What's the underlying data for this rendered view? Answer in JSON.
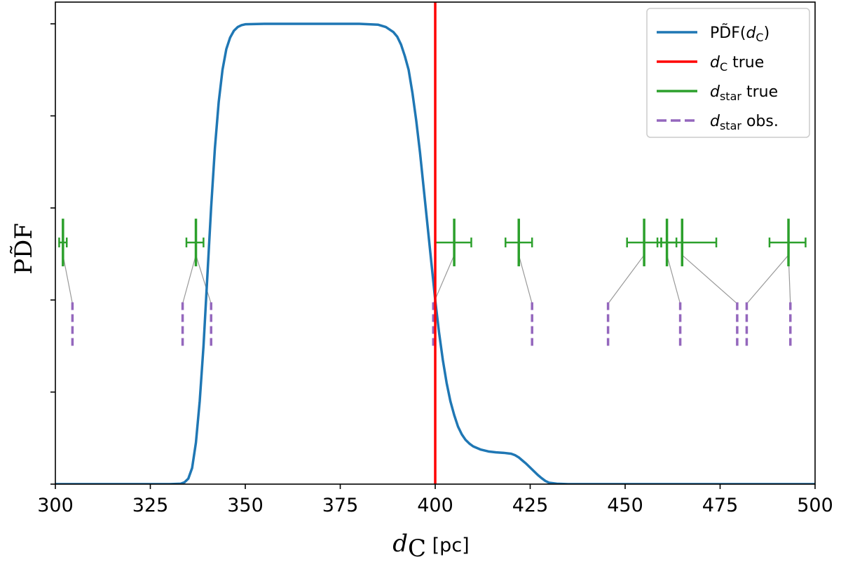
{
  "chart_data": {
    "type": "line",
    "xlabel": "d_C [pc]",
    "ylabel": "PDF~",
    "xlim": [
      300,
      500
    ],
    "ylim": [
      0,
      1.0
    ],
    "grid": false,
    "legend_position": "top-right",
    "x_ticks": [
      300,
      325,
      350,
      375,
      400,
      425,
      450,
      475,
      500
    ],
    "x_tick_labels": [
      "300",
      "325",
      "350",
      "375",
      "400",
      "425",
      "450",
      "475",
      "500"
    ],
    "y_ticks": [
      0,
      0.2,
      0.4,
      0.6,
      0.8,
      1.0
    ],
    "legend": [
      {
        "key": "pdf",
        "main": "PD̃F(",
        "italic": "d",
        "sub": "C",
        "tail": ")",
        "color": "#1f77b4",
        "style": "solid"
      },
      {
        "key": "dc_true",
        "main": "",
        "italic": "d",
        "sub": "C",
        "tail": " true",
        "color": "#ff0000",
        "style": "solid"
      },
      {
        "key": "dstar_true",
        "main": "",
        "italic": "d",
        "sub": "star",
        "tail": " true",
        "color": "#2ca02c",
        "style": "solid"
      },
      {
        "key": "dstar_obs",
        "main": "",
        "italic": "d",
        "sub": "star",
        "tail": " obs.",
        "color": "#9467bd",
        "style": "dashed"
      }
    ],
    "pdf_curve": {
      "color": "#1f77b4",
      "x": [
        300,
        310,
        318,
        325,
        330,
        333,
        334,
        335,
        336,
        337,
        338,
        339,
        340,
        341,
        342,
        343,
        344,
        345,
        346,
        347,
        348,
        349,
        350,
        355,
        360,
        370,
        380,
        385,
        387,
        389,
        390,
        391,
        392,
        393,
        394,
        395,
        396,
        397,
        398,
        399,
        400,
        401,
        402,
        403,
        404,
        405,
        406,
        407,
        408,
        409,
        410,
        412,
        414,
        416,
        418,
        420,
        421,
        422,
        423,
        424,
        425,
        426,
        427,
        428,
        429,
        430,
        432,
        435,
        440,
        450,
        500
      ],
      "y": [
        0,
        0,
        0,
        0,
        0,
        0.001,
        0.004,
        0.012,
        0.035,
        0.09,
        0.18,
        0.3,
        0.45,
        0.6,
        0.73,
        0.83,
        0.9,
        0.945,
        0.97,
        0.985,
        0.993,
        0.997,
        0.999,
        1.0,
        1.0,
        1.0,
        1.0,
        0.998,
        0.993,
        0.982,
        0.972,
        0.955,
        0.93,
        0.9,
        0.85,
        0.79,
        0.72,
        0.64,
        0.56,
        0.48,
        0.4,
        0.33,
        0.27,
        0.22,
        0.18,
        0.15,
        0.125,
        0.108,
        0.096,
        0.088,
        0.082,
        0.075,
        0.071,
        0.069,
        0.068,
        0.066,
        0.063,
        0.058,
        0.051,
        0.044,
        0.036,
        0.028,
        0.02,
        0.013,
        0.007,
        0.003,
        0.001,
        0,
        0,
        0,
        0
      ]
    },
    "dc_true": {
      "x": 400,
      "color": "#ff0000"
    },
    "dstar_true": {
      "color": "#2ca02c",
      "y_level": 0.525,
      "points": [
        {
          "x": 302,
          "err_lo": 1,
          "err_hi": 1
        },
        {
          "x": 337,
          "err_lo": 2.5,
          "err_hi": 2
        },
        {
          "x": 405,
          "err_lo": 5,
          "err_hi": 4.5
        },
        {
          "x": 422,
          "err_lo": 3.5,
          "err_hi": 3.5
        },
        {
          "x": 455,
          "err_lo": 4.5,
          "err_hi": 4.5
        },
        {
          "x": 461,
          "err_lo": 2.5,
          "err_hi": 2.5
        },
        {
          "x": 465,
          "err_lo": 5.5,
          "err_hi": 9
        },
        {
          "x": 493,
          "err_lo": 5,
          "err_hi": 4.5
        }
      ]
    },
    "dstar_obs": {
      "color": "#9467bd",
      "y_top": 0.395,
      "y_bottom": 0.295,
      "x": [
        304.5,
        333.5,
        341,
        399.5,
        425.5,
        445.5,
        464.5,
        479.5,
        482,
        493.5
      ]
    },
    "connectors": {
      "color": "#999999",
      "pairs": [
        [
          302,
          304.5
        ],
        [
          337,
          333.5
        ],
        [
          337,
          341
        ],
        [
          405,
          399.5
        ],
        [
          422,
          425.5
        ],
        [
          455,
          445.5
        ],
        [
          461,
          464.5
        ],
        [
          465,
          479.5
        ],
        [
          493,
          482
        ],
        [
          493,
          493.5
        ]
      ]
    }
  }
}
